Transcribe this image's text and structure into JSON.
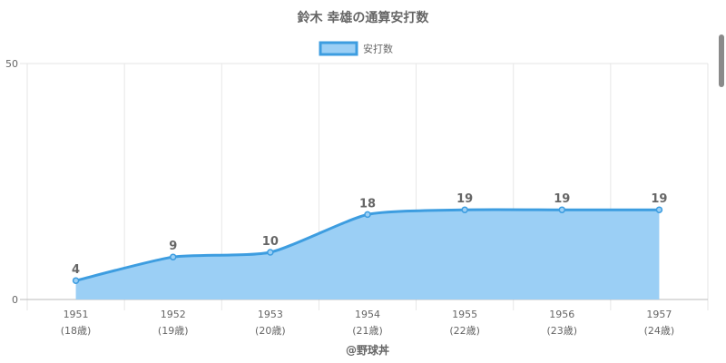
{
  "chart_data": {
    "type": "area",
    "title": "鈴木 幸雄の通算安打数",
    "categories": [
      "1951",
      "1952",
      "1953",
      "1954",
      "1955",
      "1956",
      "1957"
    ],
    "sub_labels": [
      "(18歳)",
      "(19歳)",
      "(20歳)",
      "(21歳)",
      "(22歳)",
      "(23歳)",
      "(24歳)"
    ],
    "series": [
      {
        "name": "安打数",
        "values": [
          4,
          9,
          10,
          18,
          19,
          19,
          19
        ]
      }
    ],
    "ylim": [
      0,
      50
    ],
    "yticks": [
      "0",
      "50"
    ],
    "grid": true,
    "legend_position": "top",
    "credit": "@野球丼",
    "colors": {
      "line": "#3d9de0",
      "fill": "#9bcff5",
      "grid": "#e6e6e6",
      "axis": "#bbbbbb"
    }
  }
}
